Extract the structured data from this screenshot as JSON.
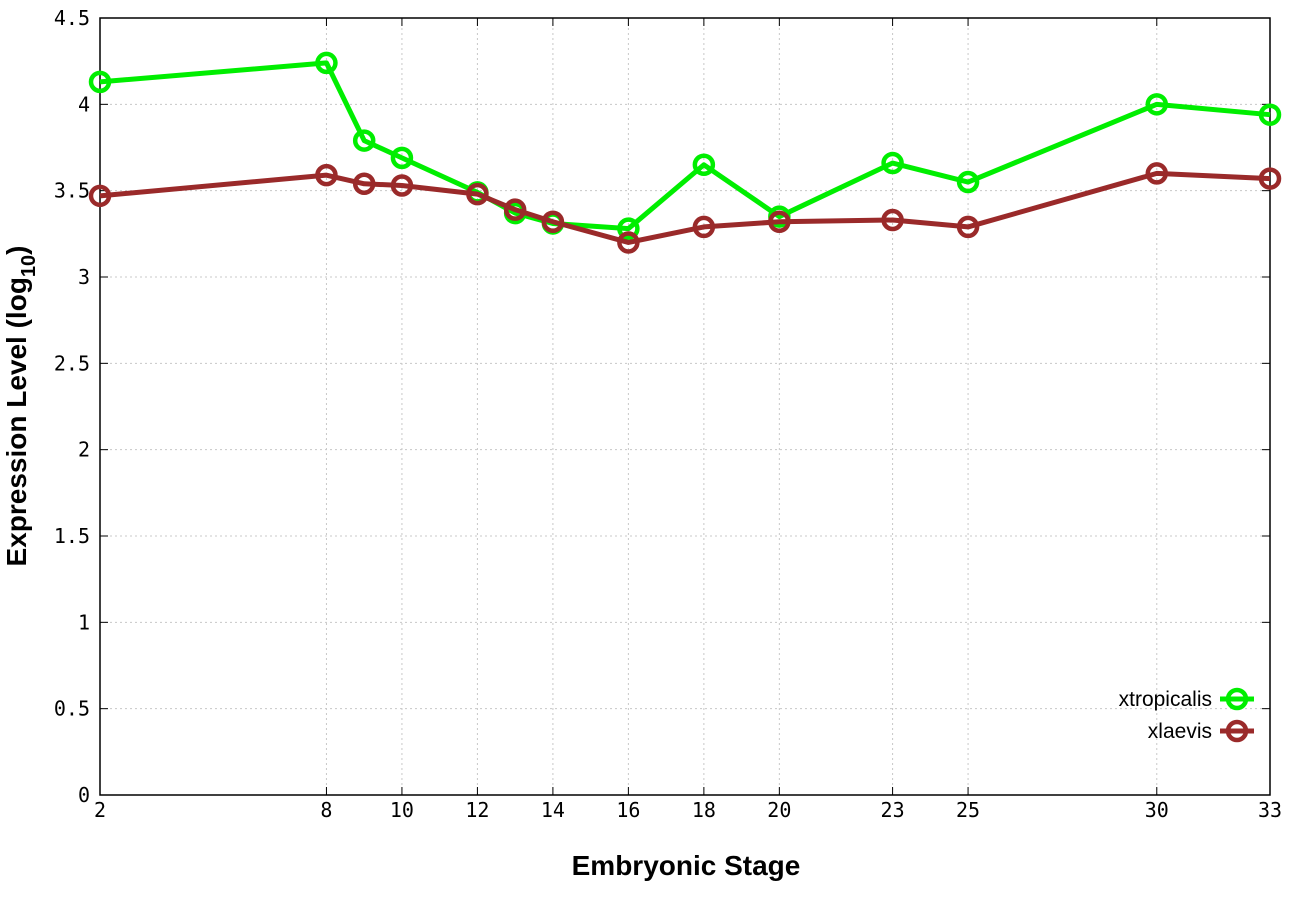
{
  "chart_data": {
    "type": "line",
    "xlabel": "Embryonic Stage",
    "ylabel_main": "Expression Level (log",
    "ylabel_sub": "10",
    "ylabel_close": ")",
    "xlim": [
      2,
      33
    ],
    "ylim": [
      0,
      4.5
    ],
    "x_ticks": [
      2,
      8,
      10,
      12,
      14,
      16,
      18,
      20,
      23,
      25,
      30,
      33
    ],
    "x_tick_labels": [
      "2",
      "8",
      "10",
      "12",
      "14",
      "16",
      "18",
      "20",
      "23",
      "25",
      "30",
      "33"
    ],
    "y_ticks": [
      0,
      0.5,
      1,
      1.5,
      2,
      2.5,
      3,
      3.5,
      4,
      4.5
    ],
    "y_tick_labels": [
      "0",
      "0.5",
      "1",
      "1.5",
      "2",
      "2.5",
      "3",
      "3.5",
      "4",
      "4.5"
    ],
    "grid": true,
    "legend_position": "bottom-right",
    "x": [
      2,
      8,
      9,
      10,
      12,
      13,
      14,
      16,
      18,
      20,
      23,
      25,
      30,
      33
    ],
    "series": [
      {
        "name": "xtropicalis",
        "color": "#00ee00",
        "values": [
          4.13,
          4.24,
          3.79,
          3.69,
          3.49,
          3.37,
          3.31,
          3.28,
          3.65,
          3.35,
          3.66,
          3.55,
          4.0,
          3.94
        ]
      },
      {
        "name": "xlaevis",
        "color": "#9a2a2a",
        "values": [
          3.47,
          3.59,
          3.54,
          3.53,
          3.48,
          3.39,
          3.32,
          3.2,
          3.29,
          3.32,
          3.33,
          3.29,
          3.6,
          3.57
        ]
      }
    ]
  }
}
